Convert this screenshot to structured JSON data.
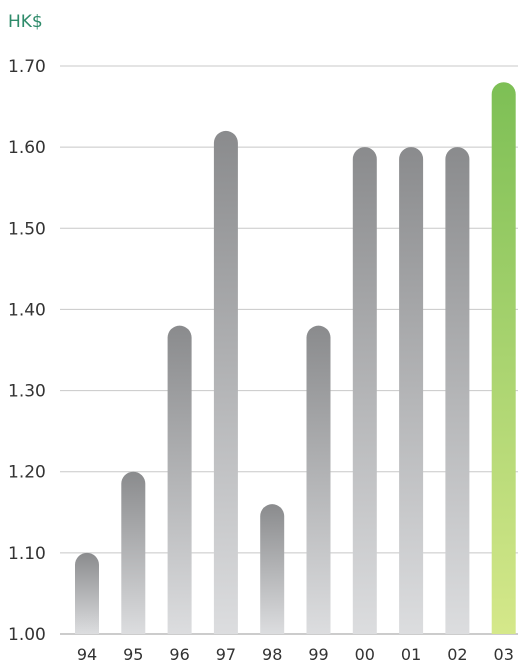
{
  "chart_data": {
    "type": "bar",
    "unit_label": "HK$",
    "categories": [
      "94",
      "95",
      "96",
      "97",
      "98",
      "99",
      "00",
      "01",
      "02",
      "03"
    ],
    "values": [
      1.1,
      1.2,
      1.38,
      1.62,
      1.16,
      1.38,
      1.6,
      1.6,
      1.6,
      1.68
    ],
    "highlight_index": 9,
    "ylim": [
      1.0,
      1.7
    ],
    "yticks": [
      "1.00",
      "1.10",
      "1.20",
      "1.30",
      "1.40",
      "1.50",
      "1.60",
      "1.70"
    ],
    "grid": true,
    "colors": {
      "bar_top": "#8a8b8d",
      "bar_bottom": "#dcdddf",
      "highlight_top": "#7dbf55",
      "highlight_bottom": "#d5e88a",
      "unit_label": "#2e8b6a",
      "gridline": "#c8c8c8"
    }
  }
}
